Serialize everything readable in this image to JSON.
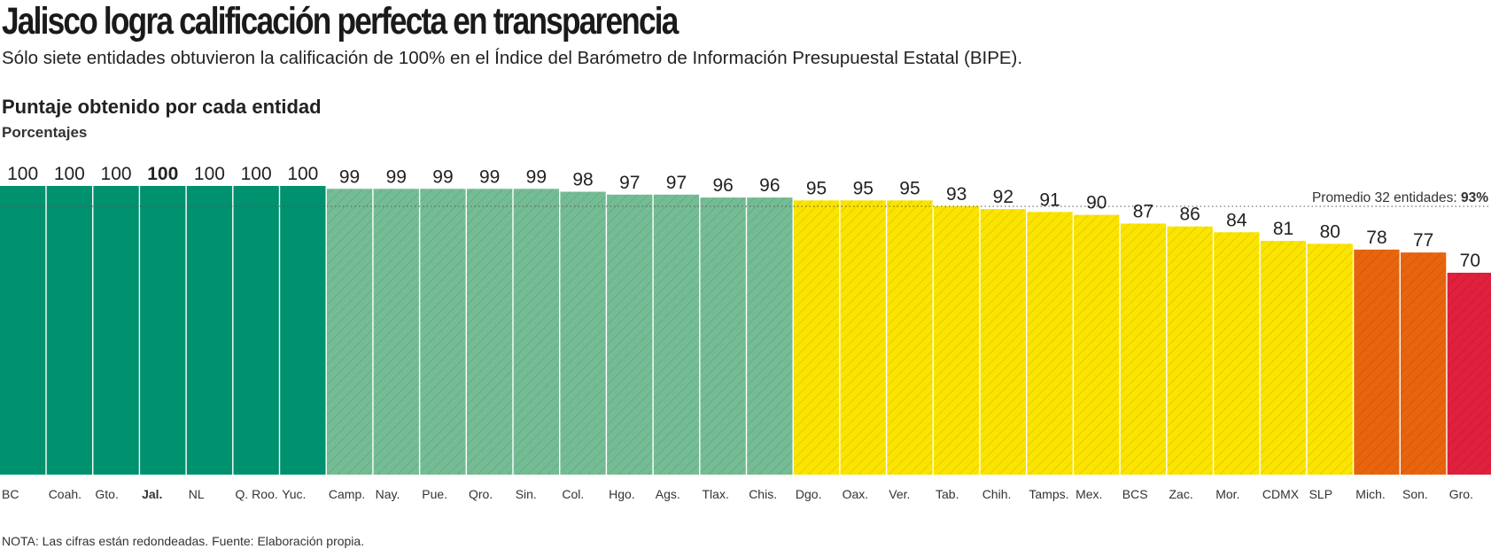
{
  "header": {
    "title": "Jalisco logra calificación perfecta en transparencia",
    "subtitle": "Sólo siete entidades obtuvieron la calificación de 100% en el Índice del Barómetro de Información Presupuestal Estatal (BIPE)."
  },
  "footer": {
    "note": "NOTA: Las cifras están redondeadas. Fuente: Elaboración propia."
  },
  "chart_data": {
    "type": "bar",
    "title": "Puntaje obtenido por cada entidad",
    "unit_label": "Porcentajes",
    "categories": [
      "BC",
      "Coah.",
      "Gto.",
      "Jal.",
      "NL",
      "Q. Roo.",
      "Yuc.",
      "Camp.",
      "Nay.",
      "Pue.",
      "Qro.",
      "Sin.",
      "Col.",
      "Hgo.",
      "Ags.",
      "Tlax.",
      "Chis.",
      "Dgo.",
      "Oax.",
      "Ver.",
      "Tab.",
      "Chih.",
      "Tamps.",
      "Mex.",
      "BCS",
      "Zac.",
      "Mor.",
      "CDMX",
      "SLP",
      "Mich.",
      "Son.",
      "Gro."
    ],
    "values": [
      100,
      100,
      100,
      100,
      100,
      100,
      100,
      99,
      99,
      99,
      99,
      99,
      98,
      97,
      97,
      96,
      96,
      95,
      95,
      95,
      93,
      92,
      91,
      90,
      87,
      86,
      84,
      81,
      80,
      78,
      77,
      70
    ],
    "highlight": "Jal.",
    "average": {
      "label": "Promedio 32 entidades:",
      "value_label": "93%",
      "value": 93
    },
    "color_bands": [
      {
        "min": 100,
        "max": 100,
        "color": "#00916e",
        "hatched": false
      },
      {
        "min": 96,
        "max": 99.99,
        "color": "#74bd94",
        "hatched": true
      },
      {
        "min": 80,
        "max": 95.99,
        "color": "#fbe400",
        "hatched": true
      },
      {
        "min": 75,
        "max": 79.99,
        "color": "#e8650e",
        "hatched": true
      },
      {
        "min": 0,
        "max": 74.99,
        "color": "#e0203c",
        "hatched": true
      }
    ],
    "ylim": [
      0,
      100
    ],
    "grid": false
  }
}
